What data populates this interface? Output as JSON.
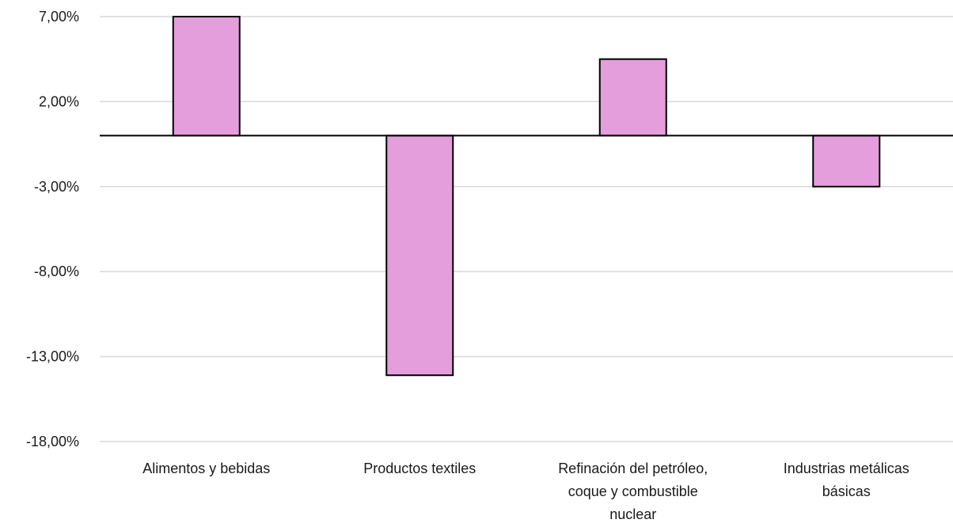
{
  "chart_data": {
    "type": "bar",
    "title": "",
    "xlabel": "",
    "ylabel": "",
    "categories": [
      [
        "Alimentos y bebidas"
      ],
      [
        "Productos textiles"
      ],
      [
        "Refinación del petróleo,",
        "coque y combustible",
        "nuclear"
      ],
      [
        "Industrias metálicas",
        "básicas"
      ]
    ],
    "values": [
      7.0,
      -14.1,
      4.5,
      -3.0
    ],
    "ylim": [
      -18,
      7
    ],
    "yticks": [
      7,
      2,
      -3,
      -8,
      -13,
      -18
    ],
    "ytick_labels": [
      "7,00%",
      "2,00%",
      "-3,00%",
      "-8,00%",
      "-13,00%",
      "-18,00%"
    ],
    "grid": true,
    "legend": "none",
    "colors": {
      "bar_fill": "#e49edc",
      "bar_stroke": "#000000",
      "grid": "#d9d9d9",
      "zero_line": "#000000"
    }
  }
}
